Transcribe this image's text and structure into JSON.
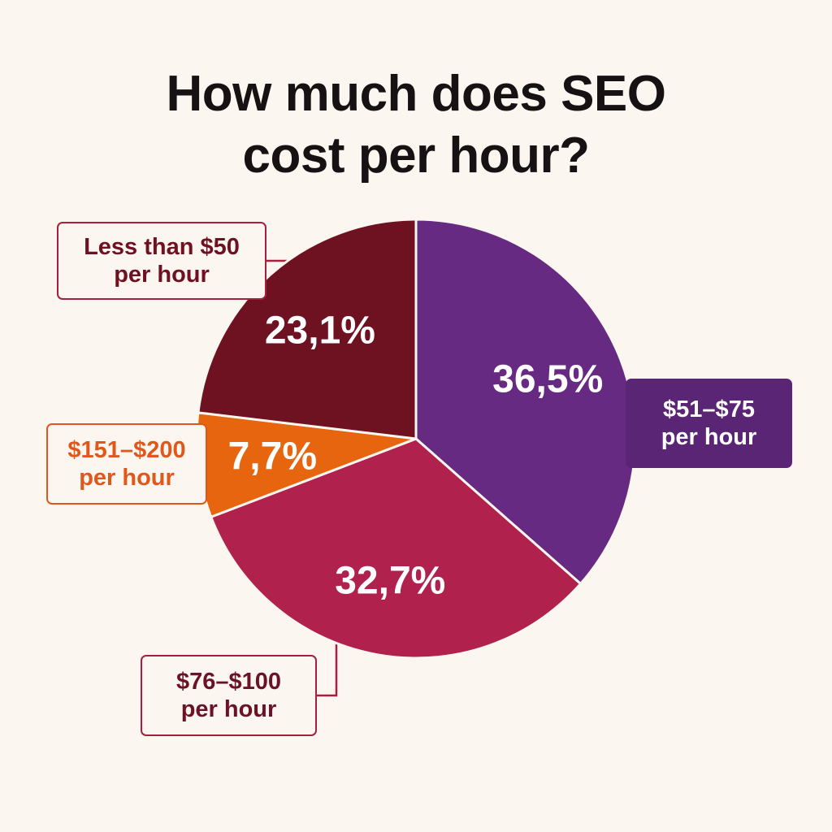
{
  "chart_data": {
    "type": "pie",
    "title_lines": [
      "How much does SEO",
      "cost per hour?"
    ],
    "slices": [
      {
        "name": "$51–$75 per hour",
        "label_lines": [
          "$51–$75",
          "per hour"
        ],
        "value": 36.5,
        "value_label": "36,5%",
        "color": "#672a82"
      },
      {
        "name": "$76–$100 per hour",
        "label_lines": [
          "$76–$100",
          "per hour"
        ],
        "value": 32.7,
        "value_label": "32,7%",
        "color": "#b0214d"
      },
      {
        "name": "$151–$200 per hour",
        "label_lines": [
          "$151–$200",
          "per hour"
        ],
        "value": 7.7,
        "value_label": "7,7%",
        "color": "#e7650f"
      },
      {
        "name": "Less than $50 per hour",
        "label_lines": [
          "Less than $50",
          "per hour"
        ],
        "value": 23.1,
        "value_label": "23,1%",
        "color": "#6e1120"
      }
    ],
    "legend_style": {
      "$51–$75 per hour": {
        "fill": "#5a2575",
        "text": "#ffffff",
        "border": "#5a2575"
      },
      "$76–$100 per hour": {
        "fill": "#fcf6f0",
        "text": "#6b1326",
        "border": "#a5203f"
      },
      "$151–$200 per hour": {
        "fill": "#fcf6f0",
        "text": "#e0571b",
        "border": "#e0571b"
      },
      "Less than $50 per hour": {
        "fill": "#fcf6f0",
        "text": "#6e1120",
        "border": "#a5203f"
      }
    }
  }
}
